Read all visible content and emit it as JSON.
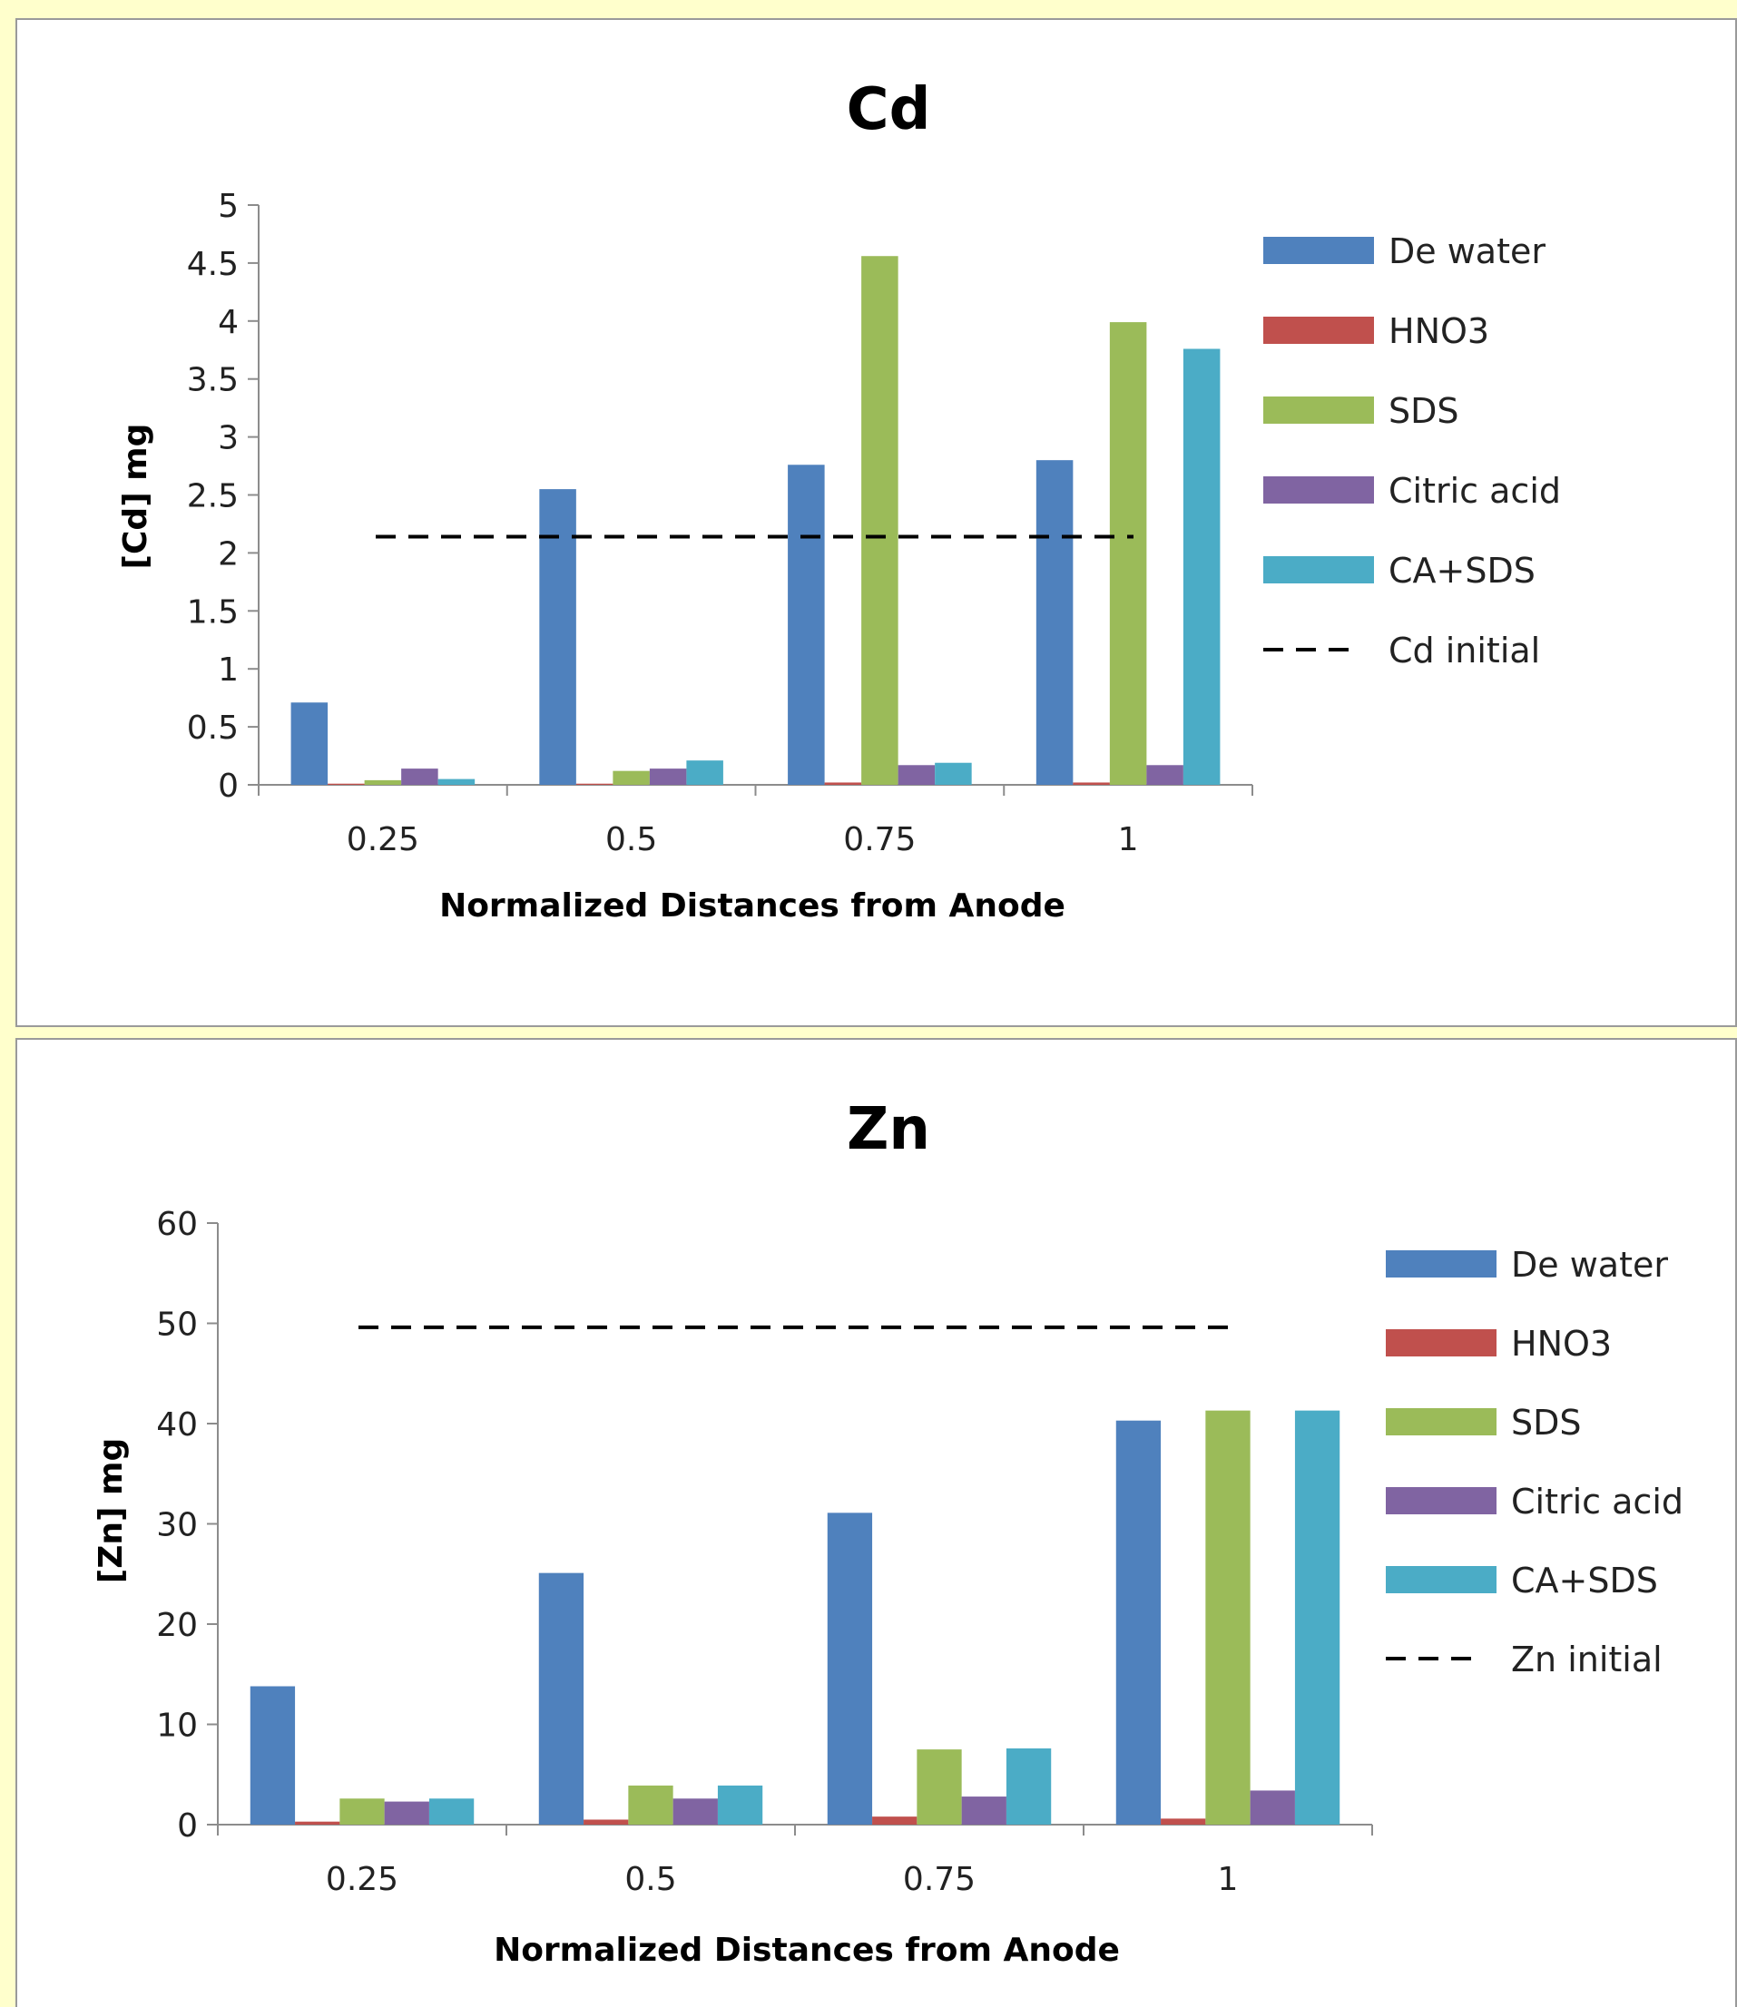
{
  "chart_data": [
    {
      "type": "bar",
      "title": "Cd",
      "xlabel": "Normalized Distances from Anode",
      "ylabel": "[Cd] mg",
      "categories": [
        "0.25",
        "0.5",
        "0.75",
        "1"
      ],
      "ylim": [
        0,
        5
      ],
      "yticks": [
        "0",
        "0.5",
        "1",
        "1.5",
        "2",
        "2.5",
        "3",
        "3.5",
        "4",
        "4.5",
        "5"
      ],
      "grid": false,
      "legend_position": "right",
      "series": [
        {
          "name": "De water",
          "color": "#4f81bd",
          "values": [
            0.71,
            2.55,
            2.76,
            2.8
          ]
        },
        {
          "name": "HNO3",
          "color": "#c0504d",
          "values": [
            0.01,
            0.01,
            0.02,
            0.02
          ]
        },
        {
          "name": "SDS",
          "color": "#9bbb59",
          "values": [
            0.04,
            0.12,
            4.56,
            3.99
          ]
        },
        {
          "name": "Citric acid",
          "color": "#8064a2",
          "values": [
            0.14,
            0.14,
            0.17,
            0.17
          ]
        },
        {
          "name": "CA+SDS",
          "color": "#4bacc6",
          "values": [
            0.05,
            0.21,
            0.19,
            3.76
          ]
        }
      ],
      "reference_line": {
        "name": "Cd initial",
        "value": 2.14,
        "color": "#000000",
        "style": "dashed"
      }
    },
    {
      "type": "bar",
      "title": "Zn",
      "xlabel": "Normalized Distances from Anode",
      "ylabel": "[Zn] mg",
      "categories": [
        "0.25",
        "0.5",
        "0.75",
        "1"
      ],
      "ylim": [
        0,
        60
      ],
      "yticks": [
        "0",
        "10",
        "20",
        "30",
        "40",
        "50",
        "60"
      ],
      "grid": false,
      "legend_position": "right",
      "series": [
        {
          "name": "De water",
          "color": "#4f81bd",
          "values": [
            13.8,
            25.1,
            31.1,
            40.3
          ]
        },
        {
          "name": "HNO3",
          "color": "#c0504d",
          "values": [
            0.3,
            0.5,
            0.8,
            0.6
          ]
        },
        {
          "name": "SDS",
          "color": "#9bbb59",
          "values": [
            2.6,
            3.9,
            7.5,
            41.3
          ]
        },
        {
          "name": "Citric acid",
          "color": "#8064a2",
          "values": [
            2.3,
            2.6,
            2.8,
            3.4
          ]
        },
        {
          "name": "CA+SDS",
          "color": "#4bacc6",
          "values": [
            2.6,
            3.9,
            7.6,
            41.3
          ]
        }
      ],
      "reference_line": {
        "name": "Zn initial",
        "value": 49.6,
        "color": "#000000",
        "style": "dashed"
      }
    }
  ]
}
